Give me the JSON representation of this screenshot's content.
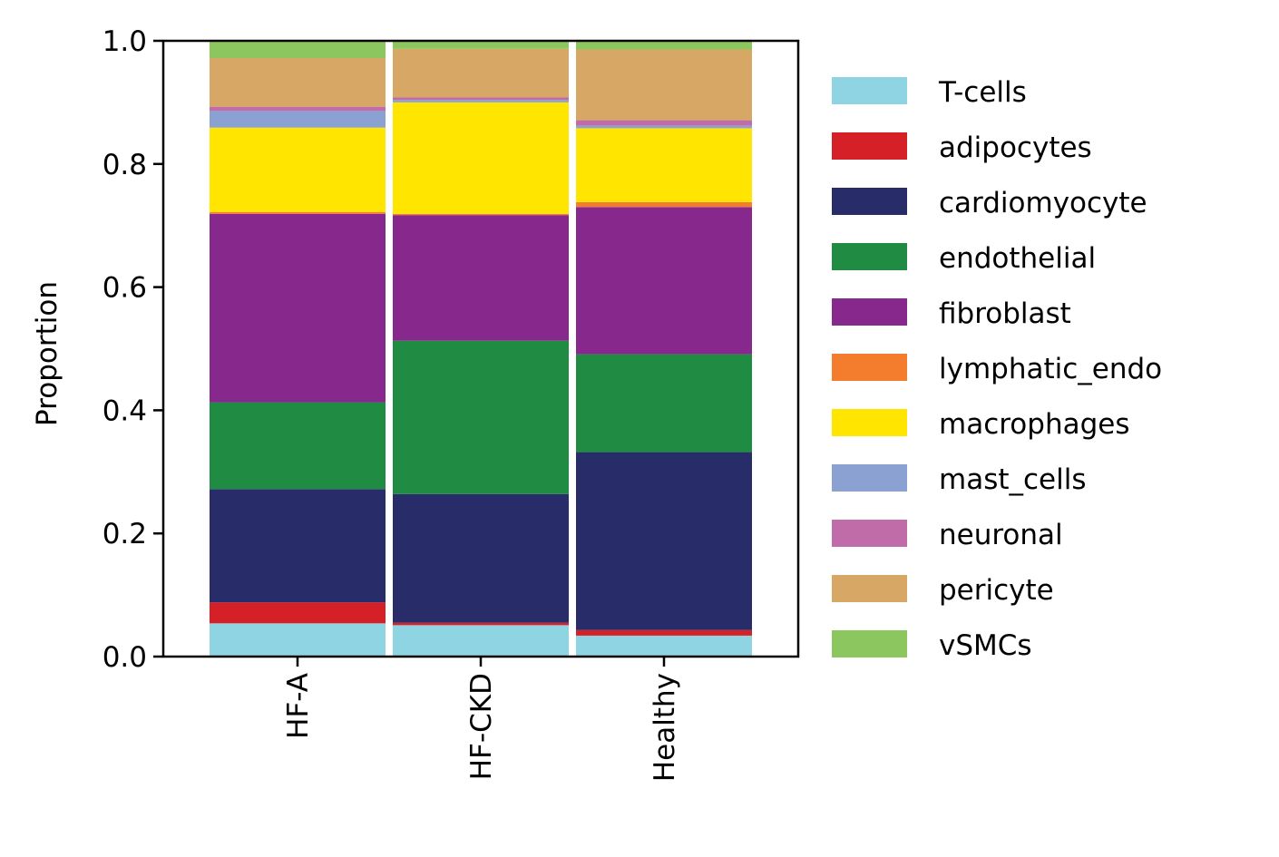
{
  "chart_data": {
    "type": "bar",
    "stacked": true,
    "categories": [
      "HF-A",
      "HF-CKD",
      "Healthy"
    ],
    "ylabel": "Proportion",
    "xlabel": "",
    "ylim": [
      0,
      1.0
    ],
    "yticks": [
      "0.0",
      "0.2",
      "0.4",
      "0.6",
      "0.8",
      "1.0"
    ],
    "grid": false,
    "legend_position": "right",
    "series": [
      {
        "name": "T-cells",
        "color": "#8fd4e3",
        "values": [
          0.054,
          0.051,
          0.034
        ]
      },
      {
        "name": "adipocytes",
        "color": "#d62027",
        "values": [
          0.034,
          0.004,
          0.009
        ]
      },
      {
        "name": "cardiomyocyte",
        "color": "#282d6a",
        "values": [
          0.184,
          0.209,
          0.289
        ]
      },
      {
        "name": "endothelial",
        "color": "#208b42",
        "values": [
          0.141,
          0.249,
          0.159
        ]
      },
      {
        "name": "fibroblast",
        "color": "#87288c",
        "values": [
          0.306,
          0.204,
          0.239
        ]
      },
      {
        "name": "lymphatic_endo",
        "color": "#f47d2d",
        "values": [
          0.003,
          0.002,
          0.008
        ]
      },
      {
        "name": "macrophages",
        "color": "#ffe500",
        "values": [
          0.137,
          0.181,
          0.12
        ]
      },
      {
        "name": "mast_cells",
        "color": "#8aa1d1",
        "values": [
          0.027,
          0.004,
          0.004
        ]
      },
      {
        "name": "neuronal",
        "color": "#c06ca8",
        "values": [
          0.007,
          0.004,
          0.009
        ]
      },
      {
        "name": "pericyte",
        "color": "#d7a766",
        "values": [
          0.079,
          0.079,
          0.115
        ]
      },
      {
        "name": "vSMCs",
        "color": "#8bc75e",
        "values": [
          0.028,
          0.013,
          0.014
        ]
      }
    ]
  }
}
